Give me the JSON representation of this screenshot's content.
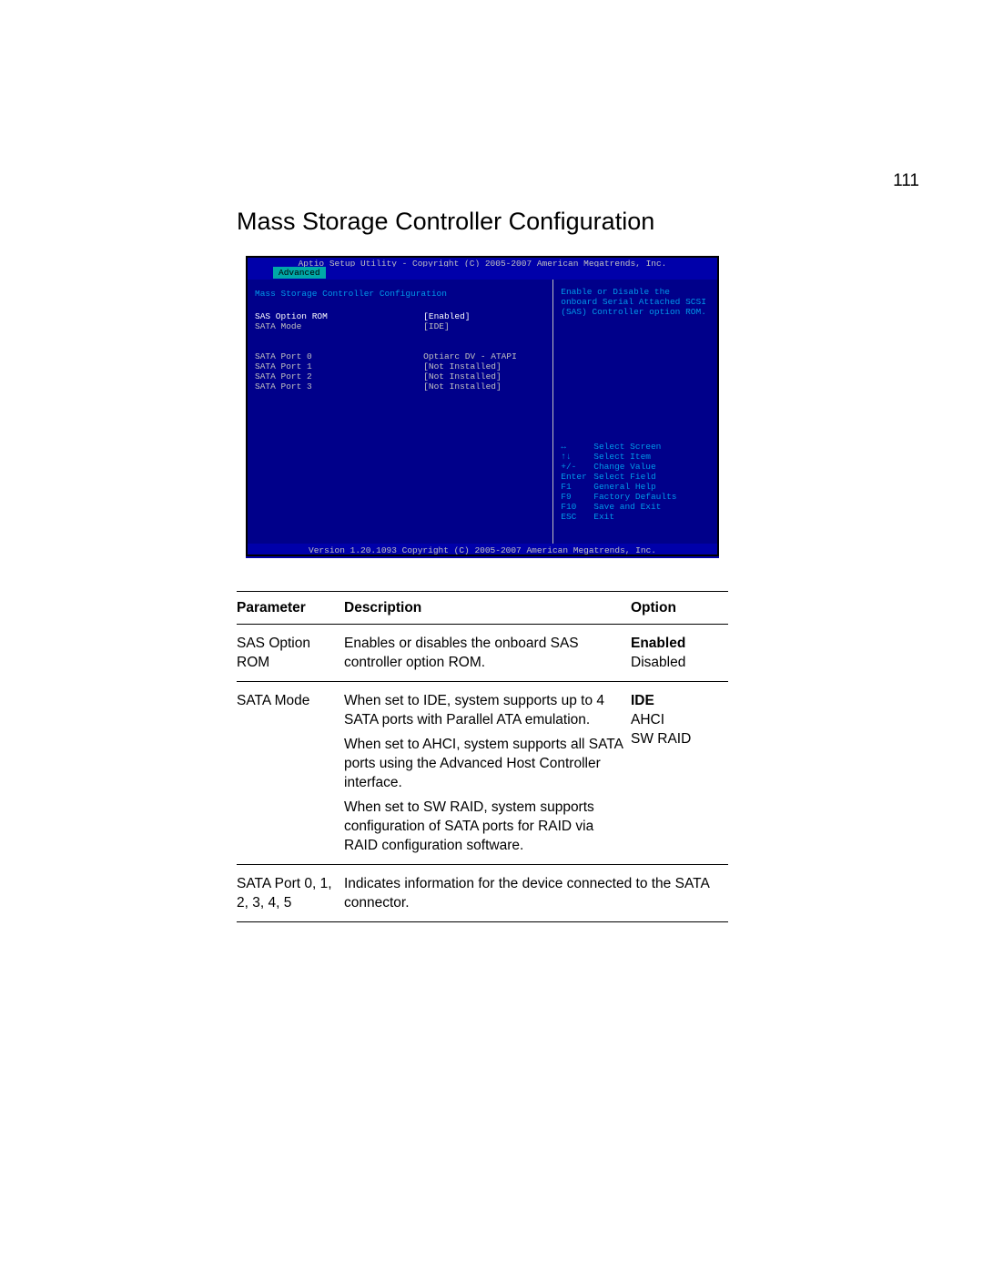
{
  "page_number": "111",
  "title": "Mass Storage Controller Configuration",
  "bios": {
    "top_bar": "Aptio Setup Utility - Copyright (C) 2005-2007 American Megatrends, Inc.",
    "tab": "Advanced",
    "section_title": "Mass Storage Controller Configuration",
    "settings": [
      {
        "label": "SAS Option ROM",
        "value": "[Enabled]",
        "highlight": true
      },
      {
        "label": "SATA Mode",
        "value": "[IDE]",
        "highlight": false
      }
    ],
    "ports": [
      {
        "label": "SATA Port 0",
        "value": "Optiarc DV - ATAPI"
      },
      {
        "label": "SATA Port 1",
        "value": "[Not Installed]"
      },
      {
        "label": "SATA Port 2",
        "value": "[Not Installed]"
      },
      {
        "label": "SATA Port 3",
        "value": "[Not Installed]"
      }
    ],
    "help_text": "Enable or Disable the onboard Serial Attached SCSI (SAS) Controller option ROM.",
    "keys": [
      {
        "k": "↔",
        "d": "Select Screen"
      },
      {
        "k": "↑↓",
        "d": "Select Item"
      },
      {
        "k": "+/-",
        "d": "Change Value"
      },
      {
        "k": "Enter",
        "d": "Select Field"
      },
      {
        "k": "F1",
        "d": "General Help"
      },
      {
        "k": "F9",
        "d": "Factory Defaults"
      },
      {
        "k": "F10",
        "d": "Save and Exit"
      },
      {
        "k": "ESC",
        "d": "Exit"
      }
    ],
    "bottom_bar": "Version 1.20.1093 Copyright (C) 2005-2007 American Megatrends, Inc.",
    "colors": {
      "frame_bg": "#0000aa",
      "panel_bg": "#00008a",
      "tab_bg": "#00a8a8",
      "text_gray": "#c0c0c0",
      "text_cyan": "#0098e8",
      "text_white": "#ffffff"
    }
  },
  "table": {
    "headers": {
      "parameter": "Parameter",
      "description": "Description",
      "option": "Option"
    },
    "rows": [
      {
        "parameter": "SAS Option ROM",
        "description": [
          "Enables or disables the onboard SAS controller option ROM."
        ],
        "options": [
          {
            "text": "Enabled",
            "default": true
          },
          {
            "text": "Disabled",
            "default": false
          }
        ]
      },
      {
        "parameter": "SATA Mode",
        "description": [
          "When set to IDE, system supports up to 4 SATA ports with Parallel ATA emulation.",
          "When set to AHCI, system supports all SATA ports using the Advanced Host Controller interface.",
          "When set to SW RAID, system supports configuration of SATA ports for RAID via RAID configuration software."
        ],
        "options": [
          {
            "text": "IDE",
            "default": true
          },
          {
            "text": "AHCI",
            "default": false
          },
          {
            "text": "SW RAID",
            "default": false
          }
        ]
      },
      {
        "parameter": "SATA Port 0, 1, 2, 3, 4, 5",
        "description": [
          "Indicates information for the device connected to the SATA connector."
        ],
        "options": []
      }
    ]
  }
}
